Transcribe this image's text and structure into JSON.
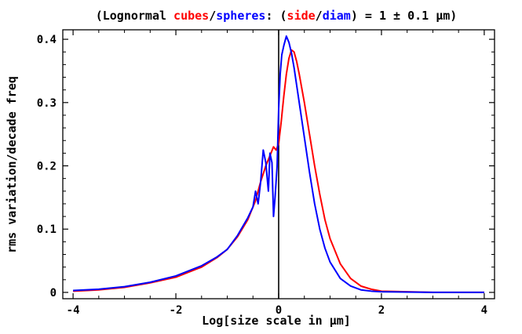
{
  "chart_data": {
    "type": "line",
    "title": {
      "parts": [
        {
          "text": "(Lognormal ",
          "color": "#000000"
        },
        {
          "text": "cubes",
          "color": "#ff0000"
        },
        {
          "text": "/",
          "color": "#000000"
        },
        {
          "text": "spheres",
          "color": "#0000ff"
        },
        {
          "text": ": (",
          "color": "#000000"
        },
        {
          "text": "side",
          "color": "#ff0000"
        },
        {
          "text": "/",
          "color": "#000000"
        },
        {
          "text": "diam",
          "color": "#0000ff"
        },
        {
          "text": ") = 1 ± 0.1 μm)",
          "color": "#000000"
        }
      ]
    },
    "xlabel": "Log[size scale in μm]",
    "ylabel": "rms variation/decade freq",
    "xlim": [
      -4.2,
      4.2
    ],
    "ylim": [
      -0.01,
      0.415
    ],
    "x_ticks": [
      -4,
      -2,
      0,
      2,
      4
    ],
    "x_tick_labels": [
      "-4",
      "-2",
      "0",
      "2",
      "4"
    ],
    "y_ticks": [
      0,
      0.1,
      0.2,
      0.3,
      0.4
    ],
    "y_tick_labels": [
      "0",
      "0.1",
      "0.2",
      "0.3",
      "0.4"
    ],
    "vertical_line_at_x": 0,
    "grid": false,
    "series": [
      {
        "color": "#ff0000",
        "points": [
          [
            -4.0,
            0.002
          ],
          [
            -3.5,
            0.004
          ],
          [
            -3.0,
            0.008
          ],
          [
            -2.5,
            0.015
          ],
          [
            -2.0,
            0.024
          ],
          [
            -1.5,
            0.04
          ],
          [
            -1.2,
            0.055
          ],
          [
            -1.0,
            0.068
          ],
          [
            -0.8,
            0.088
          ],
          [
            -0.6,
            0.115
          ],
          [
            -0.45,
            0.145
          ],
          [
            -0.35,
            0.175
          ],
          [
            -0.25,
            0.2
          ],
          [
            -0.15,
            0.22
          ],
          [
            -0.1,
            0.23
          ],
          [
            -0.05,
            0.225
          ],
          [
            0.0,
            0.235
          ],
          [
            0.05,
            0.27
          ],
          [
            0.1,
            0.31
          ],
          [
            0.15,
            0.345
          ],
          [
            0.2,
            0.37
          ],
          [
            0.25,
            0.383
          ],
          [
            0.3,
            0.38
          ],
          [
            0.35,
            0.365
          ],
          [
            0.4,
            0.345
          ],
          [
            0.5,
            0.3
          ],
          [
            0.6,
            0.25
          ],
          [
            0.7,
            0.2
          ],
          [
            0.8,
            0.155
          ],
          [
            0.9,
            0.115
          ],
          [
            1.0,
            0.085
          ],
          [
            1.2,
            0.045
          ],
          [
            1.4,
            0.022
          ],
          [
            1.6,
            0.01
          ],
          [
            1.8,
            0.005
          ],
          [
            2.0,
            0.002
          ],
          [
            2.5,
            0.001
          ],
          [
            3.0,
            0.0
          ],
          [
            4.0,
            0.0
          ]
        ]
      },
      {
        "color": "#0000ff",
        "points": [
          [
            -4.0,
            0.003
          ],
          [
            -3.5,
            0.005
          ],
          [
            -3.0,
            0.009
          ],
          [
            -2.5,
            0.016
          ],
          [
            -2.0,
            0.026
          ],
          [
            -1.5,
            0.042
          ],
          [
            -1.2,
            0.056
          ],
          [
            -1.0,
            0.068
          ],
          [
            -0.8,
            0.09
          ],
          [
            -0.6,
            0.118
          ],
          [
            -0.5,
            0.135
          ],
          [
            -0.45,
            0.16
          ],
          [
            -0.4,
            0.14
          ],
          [
            -0.35,
            0.175
          ],
          [
            -0.3,
            0.225
          ],
          [
            -0.25,
            0.205
          ],
          [
            -0.2,
            0.16
          ],
          [
            -0.17,
            0.22
          ],
          [
            -0.13,
            0.205
          ],
          [
            -0.1,
            0.12
          ],
          [
            -0.07,
            0.15
          ],
          [
            -0.03,
            0.2
          ],
          [
            0.0,
            0.29
          ],
          [
            0.03,
            0.345
          ],
          [
            0.06,
            0.375
          ],
          [
            0.1,
            0.39
          ],
          [
            0.15,
            0.405
          ],
          [
            0.2,
            0.395
          ],
          [
            0.25,
            0.378
          ],
          [
            0.3,
            0.355
          ],
          [
            0.4,
            0.3
          ],
          [
            0.5,
            0.245
          ],
          [
            0.6,
            0.19
          ],
          [
            0.7,
            0.14
          ],
          [
            0.8,
            0.1
          ],
          [
            0.9,
            0.07
          ],
          [
            1.0,
            0.048
          ],
          [
            1.2,
            0.022
          ],
          [
            1.4,
            0.01
          ],
          [
            1.6,
            0.004
          ],
          [
            1.8,
            0.002
          ],
          [
            2.0,
            0.001
          ],
          [
            3.0,
            0.0
          ],
          [
            4.0,
            0.0
          ]
        ]
      }
    ]
  }
}
